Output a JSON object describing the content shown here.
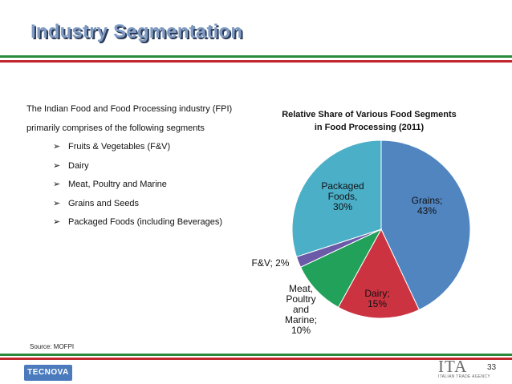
{
  "slide": {
    "title": "Industry Segmentation",
    "intro": "The Indian Food and Food Processing industry (FPI) primarily comprises of the following segments",
    "bullets": [
      "Fruits & Vegetables (F&V)",
      "Dairy",
      "Meat, Poultry and Marine",
      "Grains and Seeds",
      "Packaged Foods (including Beverages)"
    ],
    "source": "Source: MOFPI",
    "page_number": "33"
  },
  "footer": {
    "left_logo": "TECNOVA",
    "right_logo": "ITA",
    "right_logo_sub": "ITALIAN TRADE AGENCY"
  },
  "colors": {
    "title": "#7f9bc4",
    "green": "#2a8a3c",
    "red": "#c0262c",
    "grains": "#5185c0",
    "dairy": "#cc3341",
    "meat": "#21a15a",
    "fv": "#6a5aa8",
    "packaged": "#4bafc8"
  },
  "chart_data": {
    "type": "pie",
    "title": "Relative Share of Various Food Segments in Food Processing (2011)",
    "title_lines": [
      "Relative Share of Various Food Segments",
      "in Food Processing (2011)"
    ],
    "slices": [
      {
        "name": "Grains",
        "value": 43,
        "label_lines": [
          "Grains;",
          "43%"
        ],
        "color": "#5185c0"
      },
      {
        "name": "Dairy",
        "value": 15,
        "label_lines": [
          "Dairy;",
          "15%"
        ],
        "color": "#cc3341"
      },
      {
        "name": "Meat, Poultry and Marine",
        "value": 10,
        "label_lines": [
          "Meat,",
          "Poultry",
          "and",
          "Marine;",
          "10%"
        ],
        "color": "#21a15a"
      },
      {
        "name": "F&V",
        "value": 2,
        "label_lines": [
          "F&V; 2%"
        ],
        "color": "#6a5aa8"
      },
      {
        "name": "Packaged Foods",
        "value": 30,
        "label_lines": [
          "Packaged",
          "Foods,",
          "30%"
        ],
        "color": "#4bafc8"
      }
    ],
    "start": "12 o'clock",
    "direction": "clockwise"
  }
}
